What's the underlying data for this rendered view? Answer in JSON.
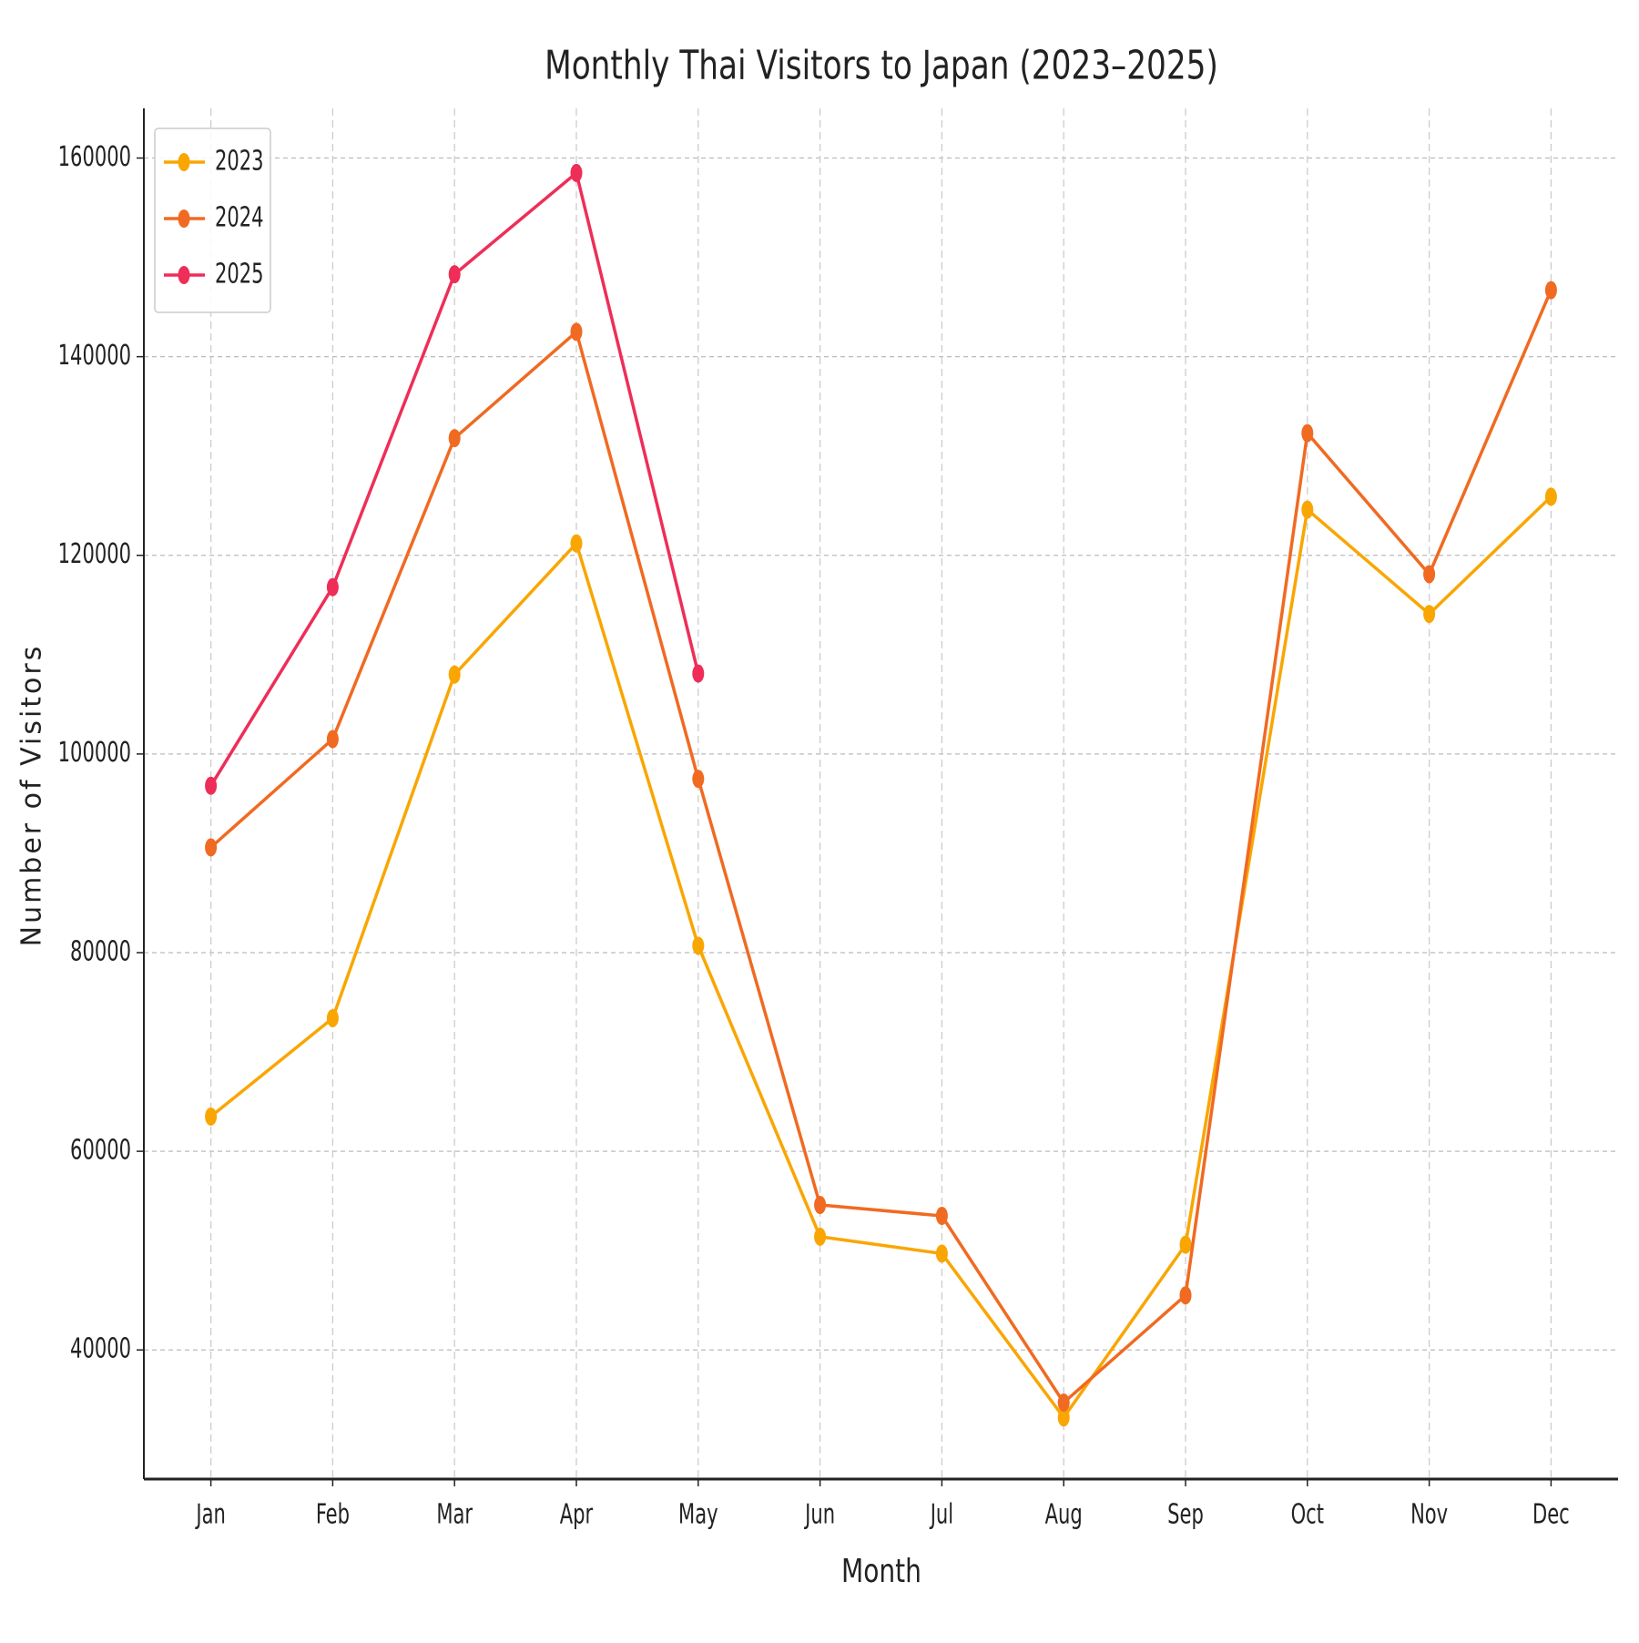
{
  "chart_data": {
    "type": "line",
    "title": "Monthly Thai Visitors to Japan (2023–2025)",
    "x_label": "Month",
    "y_label": "Number of Visitors",
    "categories": [
      "Jan",
      "Feb",
      "Mar",
      "Apr",
      "May",
      "Jun",
      "Jul",
      "Aug",
      "Sep",
      "Oct",
      "Nov",
      "Dec"
    ],
    "series": [
      {
        "name": "2023",
        "color": "#f9a602",
        "values": [
          63500,
          73400,
          108000,
          121200,
          80700,
          51400,
          49700,
          33200,
          50600,
          124600,
          114100,
          125900
        ]
      },
      {
        "name": "2024",
        "color": "#f06a22",
        "values": [
          90600,
          101500,
          131800,
          142500,
          97500,
          54600,
          53500,
          34700,
          45500,
          132300,
          118100,
          146700
        ]
      },
      {
        "name": "2025",
        "color": "#ee2e58",
        "values": [
          96800,
          116800,
          148300,
          158500,
          108100,
          null,
          null,
          null,
          null,
          null,
          null,
          null
        ]
      }
    ],
    "ylim": [
      27000,
      165000
    ],
    "yticks": [
      40000,
      60000,
      80000,
      100000,
      120000,
      140000,
      160000
    ],
    "grid": true,
    "legend": "upper left"
  }
}
